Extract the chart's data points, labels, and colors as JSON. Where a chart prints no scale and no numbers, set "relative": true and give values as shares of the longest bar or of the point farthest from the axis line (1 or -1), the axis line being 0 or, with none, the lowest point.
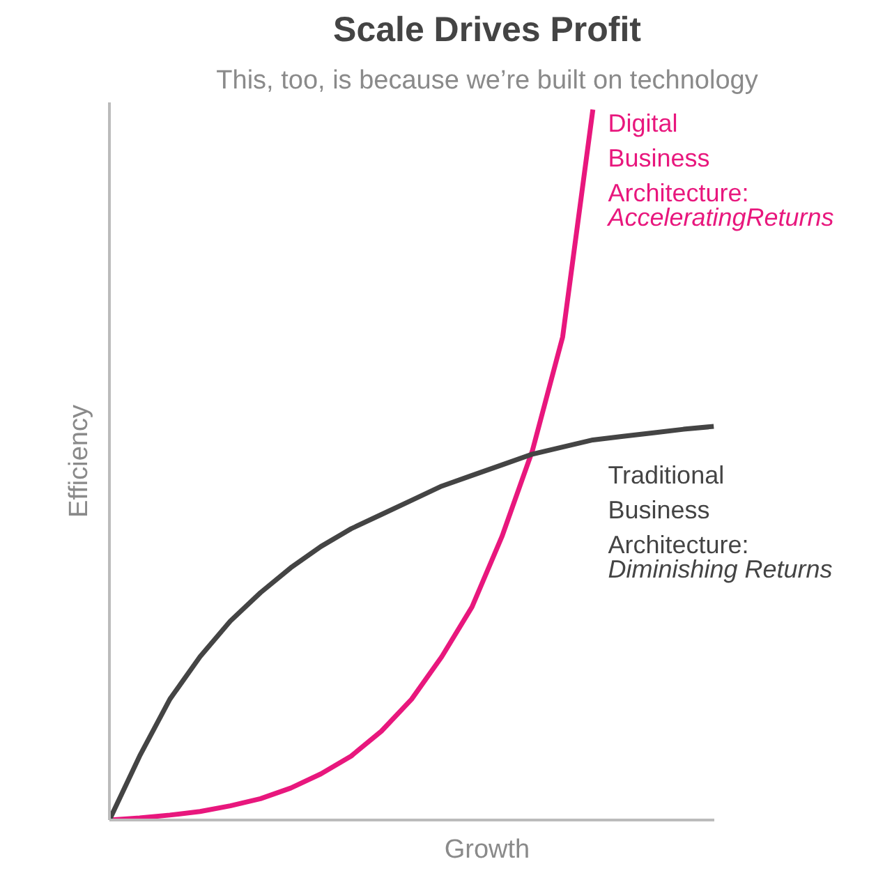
{
  "chart_data": {
    "type": "line",
    "title": "Scale Drives Profit",
    "subtitle": "This, too, is because we’re built on technology",
    "xlabel": "Growth",
    "ylabel": "Efficiency",
    "relative": true,
    "grid": false,
    "line_style": "solid",
    "marker": "none",
    "categories": [
      null,
      null,
      null,
      null,
      null,
      null,
      null,
      null,
      null,
      null,
      null,
      null,
      null,
      null,
      null,
      null,
      null,
      null,
      null,
      null,
      null
    ],
    "series": [
      {
        "name": "Digital Business Architecture: AcceleratingReturns",
        "color": "#e8177d",
        "values": [
          0,
          0.003,
          0.007,
          0.012,
          0.02,
          0.03,
          0.045,
          0.065,
          0.09,
          0.125,
          0.17,
          0.23,
          0.3,
          0.4,
          0.52,
          0.68,
          1.0,
          null,
          null,
          null,
          null
        ]
      },
      {
        "name": "Traditional Business Architecture: Diminishing Returns",
        "color": "#444444",
        "values": [
          0,
          0.09,
          0.17,
          0.23,
          0.28,
          0.32,
          0.355,
          0.385,
          0.41,
          0.43,
          0.45,
          0.47,
          0.485,
          0.5,
          0.515,
          0.525,
          0.535,
          0.54,
          0.545,
          0.55,
          0.554
        ]
      }
    ]
  }
}
